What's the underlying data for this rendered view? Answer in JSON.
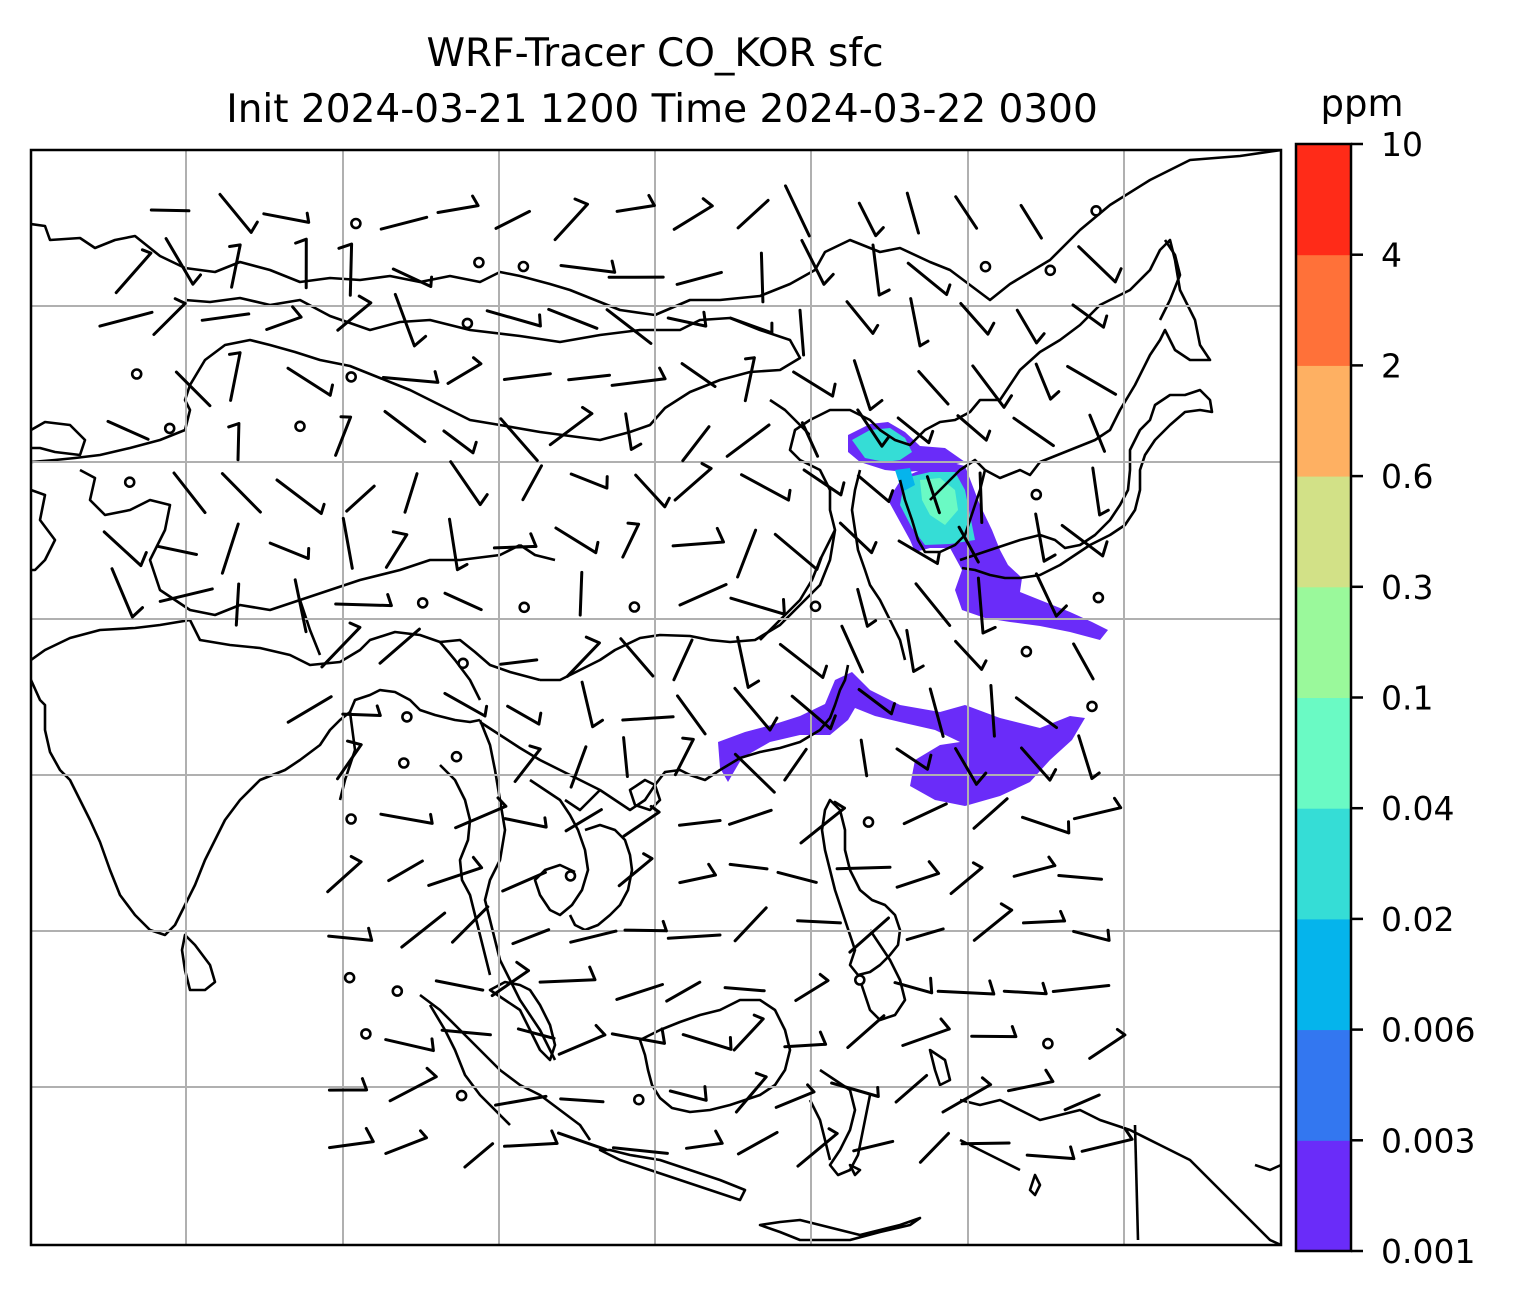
{
  "title": {
    "line1": "WRF-Tracer CO_KOR sfc",
    "line2": "Init 2024-03-21 1200 Time 2024-03-22 0300"
  },
  "colorbar": {
    "unit": "ppm",
    "ticks": [
      "0.001",
      "0.003",
      "0.006",
      "0.02",
      "0.04",
      "0.1",
      "0.3",
      "0.6",
      "2",
      "4",
      "10"
    ],
    "colors": [
      "#6a2cf9",
      "#3377f0",
      "#05b4ec",
      "#35ddd6",
      "#6afac4",
      "#9af99b",
      "#d2e187",
      "#feb062",
      "#ff7139",
      "#ff2b18"
    ]
  },
  "map": {
    "gridlines": true,
    "coastlines": true,
    "wind_barbs": true
  }
}
